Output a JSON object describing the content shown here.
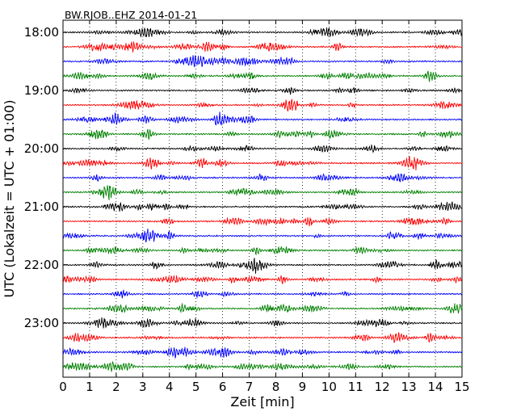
{
  "chart_data": {
    "type": "line",
    "title": "BW.RJOB..EHZ 2014-01-21",
    "xlabel": "Zeit  [min]",
    "ylabel": "UTC (Lokalzeit = UTC + 01:00)",
    "xlim": [
      0,
      15
    ],
    "x_ticks": [
      0,
      1,
      2,
      3,
      4,
      5,
      6,
      7,
      8,
      9,
      10,
      11,
      12,
      13,
      14,
      15
    ],
    "x_tick_labels": [
      "0",
      "1",
      "2",
      "3",
      "4",
      "5",
      "6",
      "7",
      "8",
      "9",
      "10",
      "11",
      "12",
      "13",
      "14",
      "15"
    ],
    "y_tick_labels": [
      "18:00",
      "19:00",
      "20:00",
      "21:00",
      "22:00",
      "23:00"
    ],
    "grid": "vertical dotted at each minute",
    "trace_colors": [
      "#000000",
      "#ff0000",
      "#0000ff",
      "#008000"
    ],
    "traces": [
      {
        "start": "18:00",
        "color": "#000000"
      },
      {
        "start": "18:15",
        "color": "#ff0000"
      },
      {
        "start": "18:30",
        "color": "#0000ff"
      },
      {
        "start": "18:45",
        "color": "#008000"
      },
      {
        "start": "19:00",
        "color": "#000000"
      },
      {
        "start": "19:15",
        "color": "#ff0000"
      },
      {
        "start": "19:30",
        "color": "#0000ff"
      },
      {
        "start": "19:45",
        "color": "#008000"
      },
      {
        "start": "20:00",
        "color": "#000000"
      },
      {
        "start": "20:15",
        "color": "#ff0000"
      },
      {
        "start": "20:30",
        "color": "#0000ff"
      },
      {
        "start": "20:45",
        "color": "#008000"
      },
      {
        "start": "21:00",
        "color": "#000000"
      },
      {
        "start": "21:15",
        "color": "#ff0000"
      },
      {
        "start": "21:30",
        "color": "#0000ff"
      },
      {
        "start": "21:45",
        "color": "#008000"
      },
      {
        "start": "22:00",
        "color": "#000000"
      },
      {
        "start": "22:15",
        "color": "#ff0000"
      },
      {
        "start": "22:30",
        "color": "#0000ff"
      },
      {
        "start": "22:45",
        "color": "#008000"
      },
      {
        "start": "23:00",
        "color": "#000000"
      },
      {
        "start": "23:15",
        "color": "#ff0000"
      },
      {
        "start": "23:30",
        "color": "#0000ff"
      },
      {
        "start": "23:45",
        "color": "#008000"
      }
    ]
  }
}
